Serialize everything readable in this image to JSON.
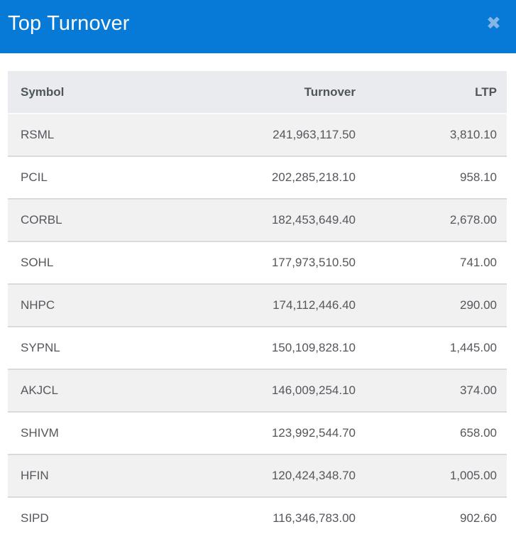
{
  "header": {
    "title": "Top Turnover",
    "close_icon": "✖"
  },
  "table": {
    "columns": [
      {
        "label": "Symbol",
        "align": "left"
      },
      {
        "label": "Turnover",
        "align": "right"
      },
      {
        "label": "LTP",
        "align": "right"
      }
    ],
    "rows": [
      {
        "symbol": "RSML",
        "turnover": "241,963,117.50",
        "ltp": "3,810.10"
      },
      {
        "symbol": "PCIL",
        "turnover": "202,285,218.10",
        "ltp": "958.10"
      },
      {
        "symbol": "CORBL",
        "turnover": "182,453,649.40",
        "ltp": "2,678.00"
      },
      {
        "symbol": "SOHL",
        "turnover": "177,973,510.50",
        "ltp": "741.00"
      },
      {
        "symbol": "NHPC",
        "turnover": "174,112,446.40",
        "ltp": "290.00"
      },
      {
        "symbol": "SYPNL",
        "turnover": "150,109,828.10",
        "ltp": "1,445.00"
      },
      {
        "symbol": "AKJCL",
        "turnover": "146,009,254.10",
        "ltp": "374.00"
      },
      {
        "symbol": "SHIVM",
        "turnover": "123,992,544.70",
        "ltp": "658.00"
      },
      {
        "symbol": "HFIN",
        "turnover": "120,424,348.70",
        "ltp": "1,005.00"
      },
      {
        "symbol": "SIPD",
        "turnover": "116,346,783.00",
        "ltp": "902.60"
      }
    ]
  },
  "colors": {
    "header_bg": "#0779d6",
    "header_text": "#ffffff",
    "close_icon": "#85b7e6",
    "thead_bg": "#e9ebee",
    "thead_text": "#4e555b",
    "row_stripe": "#f1f1f2",
    "row_white": "#ffffff",
    "row_border": "#d9dade",
    "body_text": "#54575c"
  }
}
